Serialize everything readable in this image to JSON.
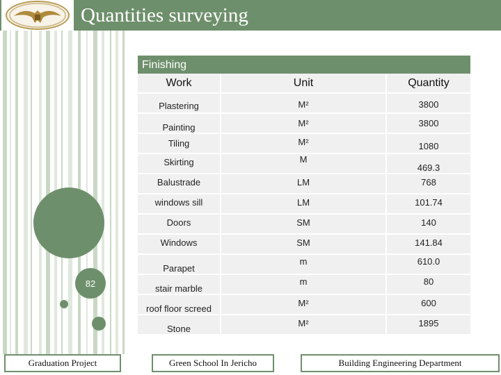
{
  "header": {
    "title": "Quantities surveying"
  },
  "page_number": "82",
  "table": {
    "section_title": "Finishing",
    "columns": [
      "Work",
      "Unit",
      "Quantity"
    ],
    "rows": [
      {
        "work": "Plastering",
        "unit": "M²",
        "quantity": "3800"
      },
      {
        "work": "Painting",
        "unit": "M²",
        "quantity": "3800"
      },
      {
        "work": "Tiling",
        "unit": "M²",
        "quantity": "1080"
      },
      {
        "work": "Skirting",
        "unit": "M",
        "quantity": "469.3"
      },
      {
        "work": "Balustrade",
        "unit": "LM",
        "quantity": "768"
      },
      {
        "work": "windows sill",
        "unit": "LM",
        "quantity": "101.74"
      },
      {
        "work": "Doors",
        "unit": "SM",
        "quantity": "140"
      },
      {
        "work": "Windows",
        "unit": "SM",
        "quantity": "141.84"
      },
      {
        "work": "Parapet",
        "unit": "m",
        "quantity": "610.0"
      },
      {
        "work": "stair marble",
        "unit": "m",
        "quantity": "80"
      },
      {
        "work": "roof floor screed",
        "unit": "M²",
        "quantity": "600"
      },
      {
        "work": "Stone",
        "unit": "M²",
        "quantity": "1895"
      }
    ]
  },
  "footer": {
    "left": "Graduation Project",
    "center": "Green School In Jericho",
    "right": "Building Engineering Department"
  },
  "colors": {
    "accent": "#6e8f6b",
    "row_shade": "#f0f0f0"
  }
}
